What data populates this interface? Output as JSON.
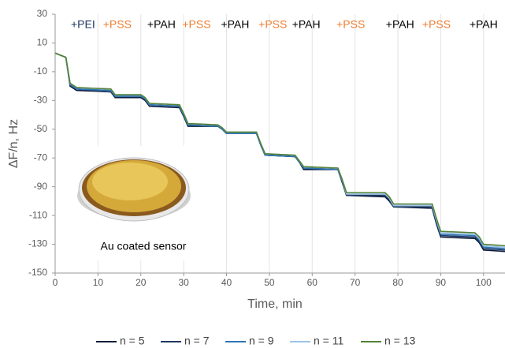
{
  "chart_data": {
    "type": "line",
    "x_label": "Time, min",
    "y_label": "ΔF/n, Hz",
    "xlim": [
      0,
      105
    ],
    "xticks": [
      0,
      10,
      20,
      30,
      40,
      50,
      60,
      70,
      80,
      90,
      100
    ],
    "ylim": [
      -150,
      30
    ],
    "yticks": [
      -150,
      -130,
      -110,
      -90,
      -70,
      -50,
      -30,
      -10,
      10,
      30
    ],
    "grid": "x",
    "x": [
      0,
      2.5,
      3.5,
      5,
      13,
      14,
      20,
      21,
      22,
      29,
      30,
      31,
      38,
      39,
      40,
      47,
      48,
      49,
      56,
      57,
      58,
      66,
      67,
      68,
      77,
      78,
      79,
      88,
      89,
      90,
      98,
      99,
      100,
      105
    ],
    "series": [
      {
        "name": "n = 5",
        "color": "#0f1f3d",
        "values": [
          3,
          0,
          -20,
          -23,
          -24,
          -28,
          -28,
          -30,
          -34,
          -35,
          -41,
          -48,
          -48,
          -50,
          -53,
          -53,
          -61,
          -68,
          -69,
          -73,
          -78,
          -78,
          -87,
          -96,
          -97,
          -100,
          -104,
          -105,
          -116,
          -125,
          -126,
          -129,
          -134,
          -135
        ]
      },
      {
        "name": "n = 7",
        "color": "#1f3864",
        "values": [
          3,
          0,
          -19,
          -22,
          -24,
          -27,
          -27,
          -29,
          -33,
          -34,
          -40,
          -47,
          -48,
          -50,
          -53,
          -53,
          -61,
          -68,
          -69,
          -73,
          -77,
          -78,
          -86,
          -96,
          -96,
          -99,
          -104,
          -104,
          -115,
          -124,
          -125,
          -128,
          -133,
          -134
        ]
      },
      {
        "name": "n = 9",
        "color": "#2e75b6",
        "values": [
          3,
          0,
          -19,
          -22,
          -23,
          -27,
          -27,
          -29,
          -33,
          -34,
          -40,
          -47,
          -48,
          -50,
          -53,
          -53,
          -61,
          -68,
          -69,
          -73,
          -77,
          -78,
          -86,
          -95,
          -95,
          -98,
          -103,
          -103,
          -114,
          -123,
          -124,
          -127,
          -132,
          -133
        ]
      },
      {
        "name": "n = 11",
        "color": "#9dc3e6",
        "values": [
          3,
          0,
          -18,
          -21,
          -22,
          -26,
          -26,
          -28,
          -32,
          -33,
          -39,
          -46,
          -47,
          -49,
          -52,
          -52,
          -60,
          -67,
          -68,
          -72,
          -76,
          -77,
          -85,
          -95,
          -95,
          -98,
          -103,
          -103,
          -113,
          -122,
          -123,
          -126,
          -131,
          -132
        ]
      },
      {
        "name": "n = 13",
        "color": "#548235",
        "values": [
          3,
          0,
          -18,
          -21,
          -22,
          -26,
          -26,
          -28,
          -32,
          -33,
          -39,
          -46,
          -47,
          -49,
          -52,
          -52,
          -60,
          -67,
          -68,
          -72,
          -76,
          -77,
          -85,
          -94,
          -94,
          -97,
          -102,
          -102,
          -112,
          -121,
          -122,
          -125,
          -130,
          -131
        ]
      }
    ],
    "annotations": [
      {
        "text": "+PEI",
        "x": 6.5,
        "color": "#1f3864"
      },
      {
        "text": "+PSS",
        "x": 14.5,
        "color": "#ed7d31"
      },
      {
        "text": "+PAH",
        "x": 24.8,
        "color": "#000000"
      },
      {
        "text": "+PSS",
        "x": 33,
        "color": "#ed7d31"
      },
      {
        "text": "+PAH",
        "x": 42,
        "color": "#000000"
      },
      {
        "text": "+PSS",
        "x": 50.8,
        "color": "#ed7d31"
      },
      {
        "text": "+PAH",
        "x": 58.6,
        "color": "#000000"
      },
      {
        "text": "+PSS",
        "x": 69,
        "color": "#ed7d31"
      },
      {
        "text": "+PAH",
        "x": 80.5,
        "color": "#000000"
      },
      {
        "text": "+PSS",
        "x": 89,
        "color": "#ed7d31"
      },
      {
        "text": "+PAH",
        "x": 100,
        "color": "#000000"
      }
    ],
    "inset_label": "Au coated sensor",
    "legend": "bottom"
  }
}
